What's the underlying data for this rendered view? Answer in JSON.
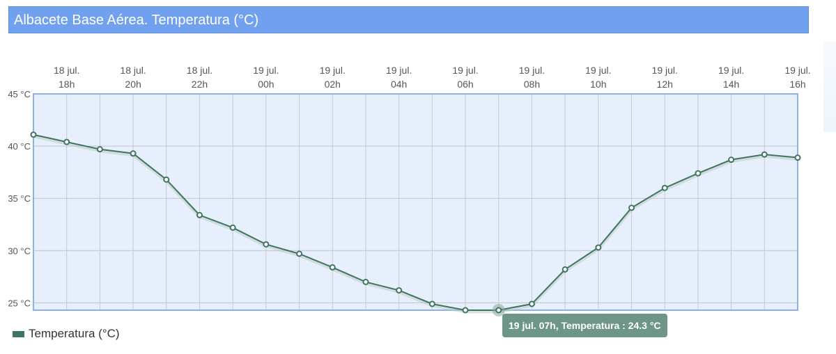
{
  "title": "Albacete Base Aérea. Temperatura (°C)",
  "legend": {
    "label": "Temperatura (°C)",
    "color": "#3f7560"
  },
  "tooltip": {
    "text": "19 jul. 07h, Temperatura : 24.3 °C"
  },
  "colors": {
    "title_bg": "#71a1ee",
    "plot_bg": "#e8effc",
    "plot_border": "#8db0e6",
    "line": "#3f7560",
    "tooltip_bg": "#6d9688"
  },
  "chart_data": {
    "type": "line",
    "title": "Albacete Base Aérea. Temperatura (°C)",
    "x": [
      "18 jul. 17h",
      "18 jul. 18h",
      "18 jul. 19h",
      "18 jul. 20h",
      "18 jul. 21h",
      "18 jul. 22h",
      "18 jul. 23h",
      "19 jul. 00h",
      "19 jul. 01h",
      "19 jul. 02h",
      "19 jul. 03h",
      "19 jul. 04h",
      "19 jul. 05h",
      "19 jul. 06h",
      "19 jul. 07h",
      "19 jul. 08h",
      "19 jul. 09h",
      "19 jul. 10h",
      "19 jul. 11h",
      "19 jul. 12h",
      "19 jul. 13h",
      "19 jul. 14h",
      "19 jul. 15h",
      "19 jul. 16h"
    ],
    "series": [
      {
        "name": "Temperatura (°C)",
        "values": [
          41.1,
          40.4,
          39.7,
          39.3,
          36.8,
          33.4,
          32.2,
          30.6,
          29.7,
          28.4,
          27.0,
          26.2,
          24.9,
          24.3,
          24.3,
          24.9,
          28.2,
          30.3,
          34.1,
          36.0,
          37.4,
          38.7,
          39.2,
          38.9
        ]
      }
    ],
    "x_tick_labels": [
      {
        "index": 1,
        "line1": "18 jul.",
        "line2": "18h"
      },
      {
        "index": 3,
        "line1": "18 jul.",
        "line2": "20h"
      },
      {
        "index": 5,
        "line1": "18 jul.",
        "line2": "22h"
      },
      {
        "index": 7,
        "line1": "19 jul.",
        "line2": "00h"
      },
      {
        "index": 9,
        "line1": "19 jul.",
        "line2": "02h"
      },
      {
        "index": 11,
        "line1": "19 jul.",
        "line2": "04h"
      },
      {
        "index": 13,
        "line1": "19 jul.",
        "line2": "06h"
      },
      {
        "index": 15,
        "line1": "19 jul.",
        "line2": "08h"
      },
      {
        "index": 17,
        "line1": "19 jul.",
        "line2": "10h"
      },
      {
        "index": 19,
        "line1": "19 jul.",
        "line2": "12h"
      },
      {
        "index": 21,
        "line1": "19 jul.",
        "line2": "14h"
      },
      {
        "index": 23,
        "line1": "19 jul.",
        "line2": "16h"
      }
    ],
    "y_ticks": [
      25,
      30,
      35,
      40,
      45
    ],
    "y_tick_labels": [
      "25 °C",
      "30 °C",
      "35 °C",
      "40 °C",
      "45 °C"
    ],
    "ylim": [
      24.3,
      45
    ],
    "grid": true,
    "highlight_index": 14,
    "legend_position": "bottom-left"
  }
}
